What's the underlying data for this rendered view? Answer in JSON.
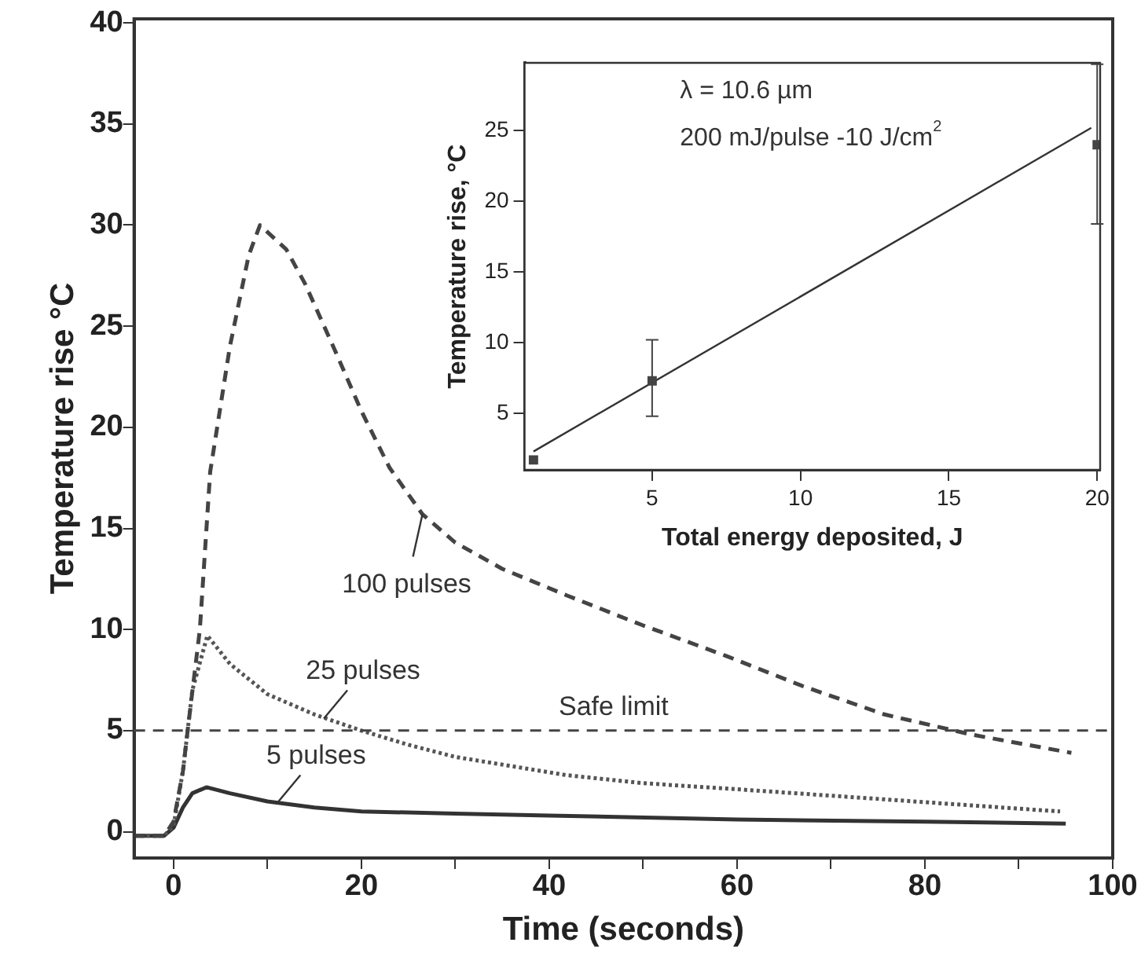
{
  "chart_data": [
    {
      "type": "line",
      "xlabel": "Time (seconds)",
      "ylabel": "Temperature rise °C",
      "xlim": [
        -4.2,
        100
      ],
      "ylim": [
        -1.3,
        40.2
      ],
      "xticks": [
        0,
        {
          "value": 10,
          "label": null
        },
        20,
        {
          "value": 30,
          "label": null
        },
        40,
        {
          "value": 50,
          "label": null
        },
        60,
        {
          "value": 70,
          "label": null
        },
        80,
        {
          "value": 90,
          "label": null
        },
        100
      ],
      "yticks": [
        0,
        5,
        10,
        15,
        20,
        25,
        30,
        35,
        40
      ],
      "series": [
        {
          "color": "#444444",
          "line_style": "dashed",
          "x": [
            -4.2,
            -1,
            0,
            1,
            1.5,
            2.8,
            3.9,
            6,
            8,
            9.2,
            12,
            14,
            17,
            20,
            23,
            26.5,
            30,
            35,
            41.8,
            50,
            58.8,
            67,
            75.7,
            85,
            95.6
          ],
          "values": [
            -0.2,
            -0.2,
            0.5,
            3,
            5,
            10,
            17.8,
            24,
            28.5,
            30,
            28.8,
            27.1,
            24,
            20.8,
            18,
            15.7,
            14.3,
            13,
            11.7,
            10.2,
            8.7,
            7.2,
            5.8,
            4.8,
            3.9
          ]
        },
        {
          "color": "#555555",
          "line_style": "dotted",
          "x": [
            -4.2,
            -1,
            0,
            1,
            2,
            3.6,
            6,
            10,
            15,
            20,
            25,
            30,
            41.8,
            50,
            60,
            75.7,
            85,
            94.4
          ],
          "values": [
            -0.2,
            -0.2,
            0.3,
            3,
            7,
            9.7,
            8.3,
            6.8,
            5.8,
            5,
            4.3,
            3.7,
            2.8,
            2.4,
            2.1,
            1.6,
            1.3,
            1.0
          ]
        },
        {
          "color": "#333333",
          "line_style": "solid",
          "x": [
            -4.2,
            -1,
            0,
            1,
            2,
            3.5,
            6,
            10,
            15,
            20,
            30,
            40,
            60,
            80,
            95
          ],
          "values": [
            -0.2,
            -0.2,
            0.2,
            1.2,
            1.9,
            2.2,
            1.9,
            1.5,
            1.2,
            1.0,
            0.9,
            0.8,
            0.6,
            0.5,
            0.4
          ]
        }
      ],
      "ref_lines": [
        {
          "axis": "y",
          "value": 5,
          "label": "Safe limit",
          "line_style": "dashed",
          "color": "#444444"
        }
      ],
      "annotations": [
        {
          "text": "100 pulses",
          "x": 26.5,
          "y": 15.7
        },
        {
          "text": "25 pulses",
          "x": 16,
          "y": 5.6
        },
        {
          "text": "5 pulses",
          "x": 11,
          "y": 1.4
        }
      ]
    },
    {
      "type": "scatter",
      "xlabel": "Total energy deposited, J",
      "ylabel": "Temperature rise, °C",
      "xlim": [
        0.7,
        20.1
      ],
      "ylim": [
        1,
        29.8
      ],
      "xticks": [
        5,
        10,
        15,
        20
      ],
      "yticks": [
        5,
        10,
        15,
        20,
        25
      ],
      "series": [
        {
          "color": "#444444",
          "marker": "square",
          "x": [
            1,
            5,
            20
          ],
          "values": [
            1.7,
            7.3,
            24
          ],
          "errors": [
            null,
            [
              4.8,
              10.2
            ],
            [
              18.4,
              29.7
            ]
          ]
        },
        {
          "type": "line",
          "color": "#333333",
          "x": [
            1,
            19.8
          ],
          "values": [
            2.3,
            25.2
          ]
        }
      ],
      "annotations": [
        "λ = 10.6 µm",
        "200 mJ/pulse -10 J/cm$^{2}$"
      ]
    }
  ]
}
